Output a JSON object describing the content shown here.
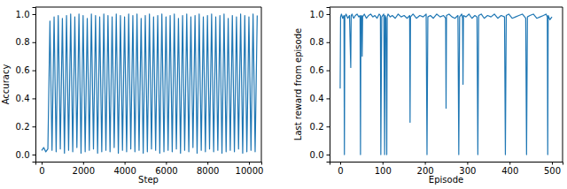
{
  "chart_data": [
    {
      "type": "line",
      "x_label": "Step",
      "y_label": "Accuracy",
      "color": "#1f77b4",
      "xlim": [
        -300,
        10600
      ],
      "ylim": [
        -0.05,
        1.05
      ],
      "xticks": [
        0,
        2000,
        4000,
        6000,
        8000,
        10000
      ],
      "yticks": [
        {
          "value": 0,
          "label": "0.0"
        },
        {
          "value": 0.2,
          "label": "0.2"
        },
        {
          "value": 0.4,
          "label": "0.4"
        },
        {
          "value": 0.6,
          "label": "0.6"
        },
        {
          "value": 0.8,
          "label": "0.8"
        },
        {
          "value": 1,
          "label": "1.0"
        }
      ],
      "x": [
        0,
        100,
        200,
        300,
        400,
        500,
        600,
        700,
        800,
        900,
        1000,
        1100,
        1200,
        1300,
        1400,
        1500,
        1600,
        1700,
        1800,
        1900,
        2000,
        2100,
        2200,
        2300,
        2400,
        2500,
        2600,
        2700,
        2800,
        2900,
        3000,
        3100,
        3200,
        3300,
        3400,
        3500,
        3600,
        3700,
        3800,
        3900,
        4000,
        4100,
        4200,
        4300,
        4400,
        4500,
        4600,
        4700,
        4800,
        4900,
        5000,
        5100,
        5200,
        5300,
        5400,
        5500,
        5600,
        5700,
        5800,
        5900,
        6000,
        6100,
        6200,
        6300,
        6400,
        6500,
        6600,
        6700,
        6800,
        6900,
        7000,
        7100,
        7200,
        7300,
        7400,
        7500,
        7600,
        7700,
        7800,
        7900,
        8000,
        8100,
        8200,
        8300,
        8400,
        8500,
        8600,
        8700,
        8800,
        8900,
        9000,
        9100,
        9200,
        9300,
        9400,
        9500,
        9600,
        9700,
        9800,
        9900,
        10000,
        10100,
        10200,
        10300,
        10400
      ],
      "values": [
        0.03,
        0.05,
        0.02,
        0.04,
        0.95,
        0.03,
        0.98,
        0.02,
        0.99,
        0.04,
        0.97,
        0.01,
        0.99,
        0.03,
        1.0,
        0.02,
        0.98,
        0.05,
        1.0,
        0.01,
        0.99,
        0.02,
        0.97,
        0.03,
        1.0,
        0.04,
        0.99,
        0.01,
        0.98,
        0.02,
        1.0,
        0.03,
        0.99,
        0.02,
        0.98,
        0.05,
        1.0,
        0.01,
        0.99,
        0.03,
        0.98,
        0.02,
        1.0,
        0.04,
        0.99,
        0.02,
        1.0,
        0.03,
        0.97,
        0.01,
        0.99,
        0.02,
        1.0,
        0.04,
        0.98,
        0.03,
        0.99,
        0.01,
        1.0,
        0.02,
        0.98,
        0.03,
        0.99,
        0.02,
        1.0,
        0.04,
        0.97,
        0.01,
        0.99,
        0.03,
        1.0,
        0.02,
        0.98,
        0.05,
        0.99,
        0.01,
        1.0,
        0.03,
        0.98,
        0.02,
        0.99,
        0.04,
        1.0,
        0.02,
        0.98,
        0.03,
        0.99,
        0.01,
        1.0,
        0.02,
        0.97,
        0.03,
        0.99,
        0.02,
        0.98,
        0.04,
        1.0,
        0.01,
        0.99,
        0.02,
        0.98,
        0.03,
        1.0,
        0.02,
        0.99
      ]
    },
    {
      "type": "line",
      "x_label": "Episode",
      "y_label": "Last reward from episode",
      "color": "#1f77b4",
      "xlim": [
        -25,
        525
      ],
      "ylim": [
        -0.05,
        1.05
      ],
      "xticks": [
        0,
        100,
        200,
        300,
        400,
        500
      ],
      "yticks": [
        {
          "value": 0,
          "label": "0.0"
        },
        {
          "value": 0.2,
          "label": "0.2"
        },
        {
          "value": 0.4,
          "label": "0.4"
        },
        {
          "value": 0.6,
          "label": "0.6"
        },
        {
          "value": 0.8,
          "label": "0.8"
        },
        {
          "value": 1,
          "label": "1.0"
        }
      ],
      "x": [
        0,
        1,
        3,
        6,
        9,
        10,
        11,
        14,
        18,
        22,
        25,
        26,
        28,
        32,
        36,
        40,
        44,
        47,
        48,
        49,
        51,
        52,
        53,
        57,
        62,
        67,
        72,
        77,
        82,
        87,
        92,
        95,
        96,
        98,
        103,
        105,
        106,
        108,
        110,
        111,
        113,
        118,
        123,
        130,
        137,
        144,
        151,
        158,
        164,
        165,
        166,
        172,
        180,
        188,
        196,
        203,
        205,
        207,
        213,
        220,
        228,
        236,
        244,
        249,
        250,
        251,
        257,
        264,
        271,
        278,
        280,
        282,
        287,
        289,
        290,
        291,
        297,
        304,
        311,
        318,
        323,
        325,
        327,
        333,
        340,
        348,
        356,
        364,
        372,
        380,
        388,
        390,
        392,
        398,
        406,
        414,
        422,
        430,
        438,
        440,
        442,
        448,
        456,
        464,
        472,
        480,
        486,
        489,
        490,
        491,
        495,
        500
      ],
      "values": [
        0.47,
        0.98,
        1.0,
        0.97,
        0.99,
        0.0,
        0.98,
        1.0,
        0.97,
        0.99,
        0.62,
        0.99,
        1.0,
        0.97,
        0.99,
        1.0,
        0.98,
        0.99,
        0.0,
        0.98,
        0.99,
        0.7,
        0.98,
        1.0,
        0.97,
        0.99,
        1.0,
        0.98,
        0.99,
        0.97,
        1.0,
        0.99,
        0.0,
        0.98,
        1.0,
        0.0,
        0.99,
        0.97,
        0.0,
        0.98,
        1.0,
        0.98,
        0.99,
        0.97,
        1.0,
        0.98,
        0.99,
        0.97,
        0.99,
        0.23,
        0.98,
        1.0,
        0.97,
        0.99,
        0.98,
        1.0,
        0.0,
        0.98,
        0.99,
        0.97,
        1.0,
        0.98,
        0.99,
        0.97,
        0.33,
        0.99,
        1.0,
        0.98,
        0.97,
        0.99,
        0.0,
        0.98,
        1.0,
        0.97,
        0.5,
        0.99,
        0.98,
        1.0,
        0.97,
        0.99,
        0.98,
        0.0,
        0.99,
        1.0,
        0.97,
        0.99,
        0.98,
        1.0,
        0.97,
        0.99,
        0.98,
        0.0,
        0.99,
        1.0,
        0.97,
        0.98,
        0.99,
        1.0,
        0.97,
        0.0,
        0.98,
        0.99,
        1.0,
        0.97,
        0.98,
        0.99,
        1.0,
        0.98,
        0.0,
        0.99,
        0.96,
        0.98
      ]
    }
  ]
}
